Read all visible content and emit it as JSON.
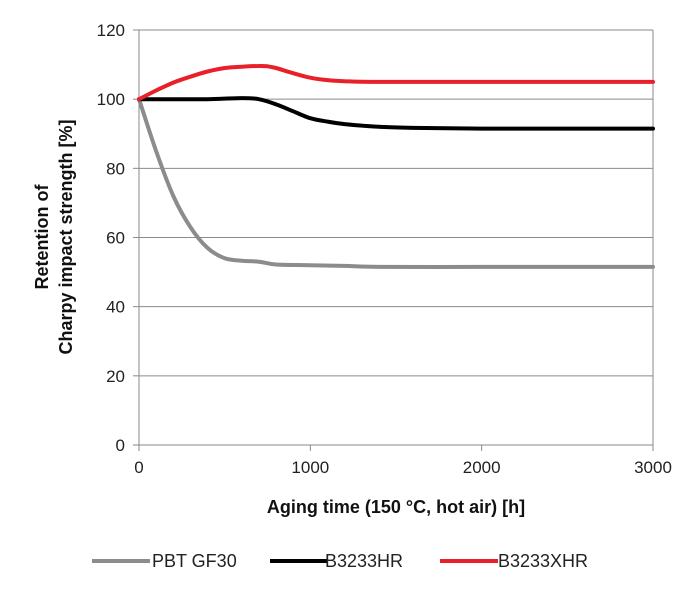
{
  "chart_data": {
    "type": "line",
    "xlabel": "Aging time (150 °C, hot air) [h]",
    "ylabel_line1": "Retention of",
    "ylabel_line2": "Charpy impact strength [%]",
    "xlim": [
      0,
      3000
    ],
    "ylim": [
      0,
      120
    ],
    "x_ticks": [
      0,
      1000,
      2000,
      3000
    ],
    "y_ticks": [
      0,
      20,
      40,
      60,
      80,
      100,
      120
    ],
    "grid": "horizontal",
    "legend_position": "bottom",
    "series": [
      {
        "name": "PBT GF30",
        "color": "#8c8c8c",
        "x": [
          0,
          100,
          200,
          300,
          400,
          500,
          600,
          700,
          800,
          1000,
          1200,
          1400,
          2000,
          2500,
          3000
        ],
        "y": [
          100,
          85,
          72,
          63,
          57,
          54,
          53.3,
          53,
          52.2,
          52,
          51.8,
          51.5,
          51.5,
          51.5,
          51.5
        ]
      },
      {
        "name": "B3233HR",
        "color": "#000000",
        "x": [
          0,
          200,
          400,
          600,
          700,
          800,
          900,
          1000,
          1100,
          1200,
          1400,
          1600,
          2000,
          2500,
          3000
        ],
        "y": [
          100,
          100,
          100,
          100.3,
          100,
          98.5,
          96.5,
          94.5,
          93.5,
          92.8,
          92,
          91.7,
          91.5,
          91.5,
          91.5
        ]
      },
      {
        "name": "B3233XHR",
        "color": "#e8202a",
        "x": [
          0,
          100,
          200,
          300,
          400,
          500,
          600,
          700,
          750,
          800,
          900,
          1000,
          1100,
          1200,
          1400,
          2000,
          3000
        ],
        "y": [
          100,
          102.5,
          104.8,
          106.5,
          108,
          109,
          109.4,
          109.6,
          109.5,
          109,
          107.5,
          106.2,
          105.5,
          105.2,
          105,
          105,
          105
        ]
      }
    ]
  }
}
